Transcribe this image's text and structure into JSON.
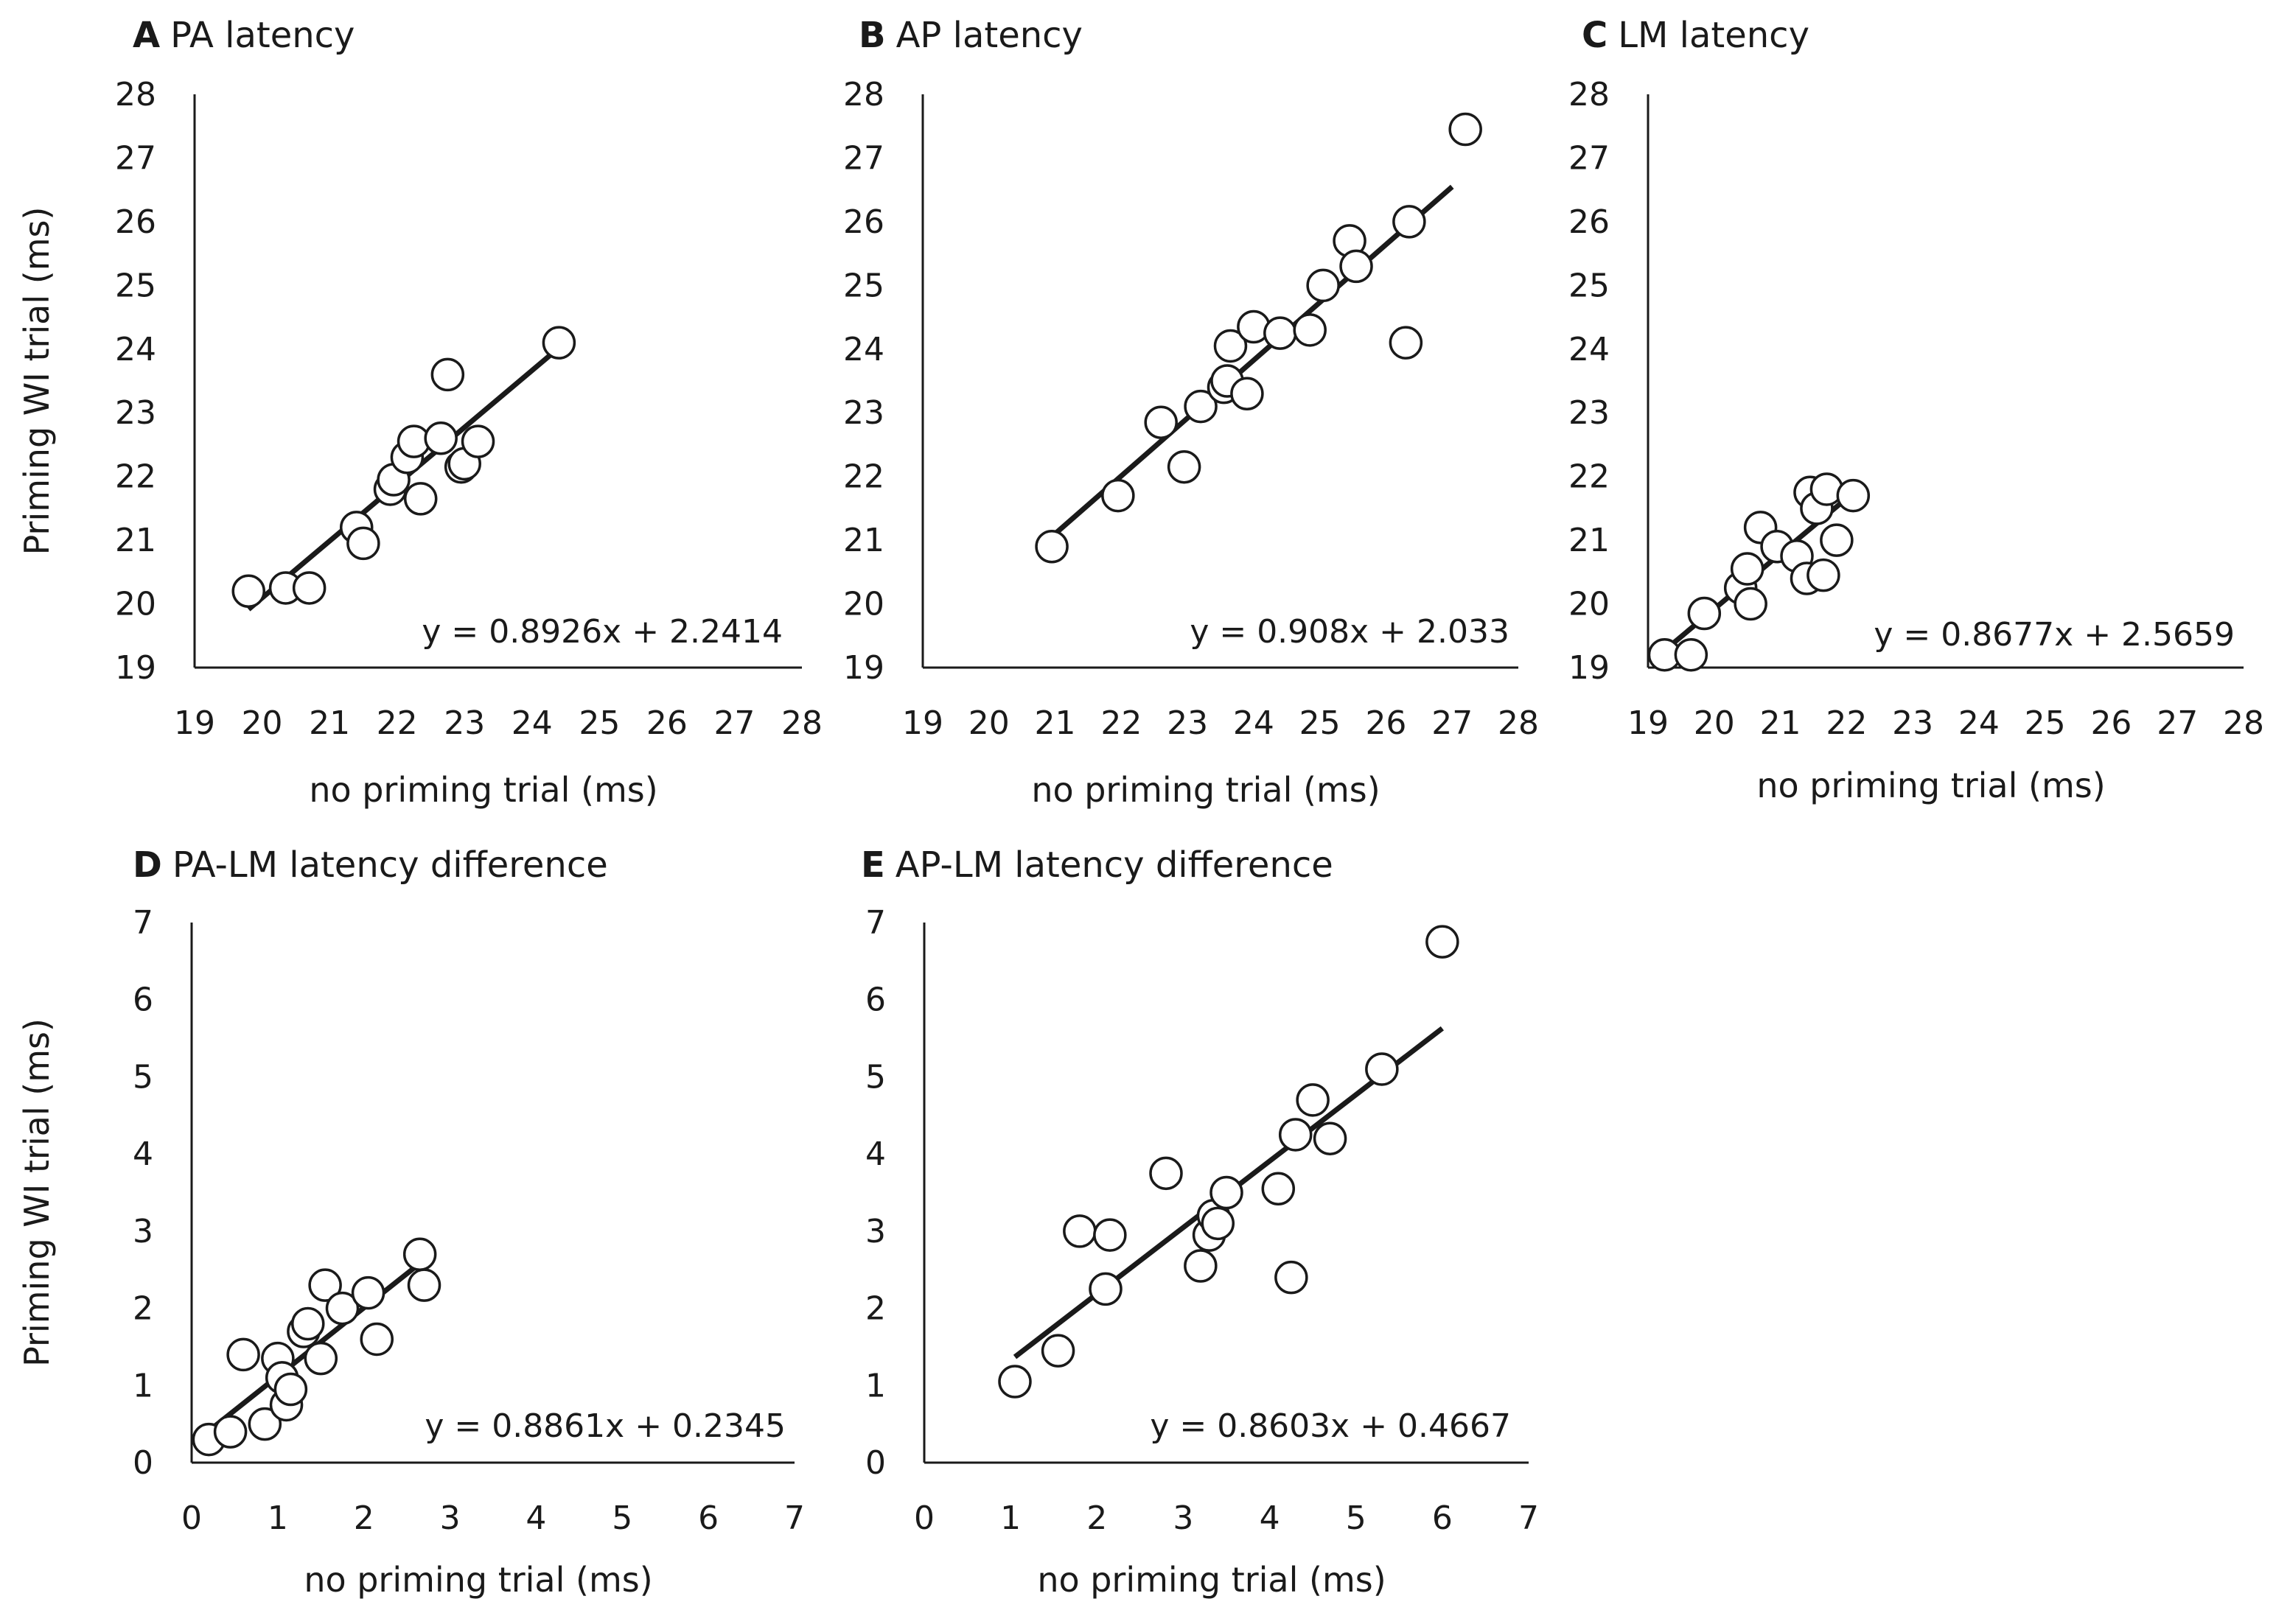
{
  "figure": {
    "shared_ylabel": "Priming WI trial (ms)",
    "shared_xlabel": "no priming trial (ms)"
  },
  "chart_data": [
    {
      "id": "A",
      "type": "scatter",
      "letter": "A",
      "title": "PA latency",
      "xlabel": "no priming trial (ms)",
      "ylabel": "Priming WI trial (ms)",
      "xlim": [
        19,
        28
      ],
      "ylim": [
        19,
        28
      ],
      "xticks": [
        19,
        20,
        21,
        22,
        23,
        24,
        25,
        26,
        27,
        28
      ],
      "yticks": [
        19,
        20,
        21,
        22,
        23,
        24,
        25,
        26,
        27,
        28
      ],
      "x": [
        19.8,
        20.35,
        20.7,
        21.4,
        21.5,
        21.9,
        21.95,
        22.15,
        22.25,
        22.35,
        22.65,
        22.75,
        22.95,
        23.0,
        23.2,
        24.4
      ],
      "y": [
        20.2,
        20.25,
        20.25,
        21.2,
        20.95,
        21.8,
        21.95,
        22.3,
        22.55,
        21.65,
        22.6,
        23.6,
        22.15,
        22.2,
        22.55,
        24.1
      ],
      "trendline": {
        "x": [
          19.8,
          24.4
        ],
        "slope": 0.8926,
        "intercept": 2.2414
      },
      "equation": "y = 0.8926x  + 2.2414"
    },
    {
      "id": "B",
      "type": "scatter",
      "letter": "B",
      "title": "AP latency",
      "xlabel": "no priming trial (ms)",
      "ylabel": "",
      "xlim": [
        19,
        28
      ],
      "ylim": [
        19,
        28
      ],
      "xticks": [
        19,
        20,
        21,
        22,
        23,
        24,
        25,
        26,
        27,
        28
      ],
      "yticks": [
        19,
        20,
        21,
        22,
        23,
        24,
        25,
        26,
        27,
        28
      ],
      "x": [
        20.95,
        21.95,
        22.6,
        22.95,
        23.2,
        23.55,
        23.6,
        23.65,
        23.9,
        24.0,
        24.4,
        24.85,
        25.05,
        25.45,
        25.55,
        26.3,
        26.35,
        27.2
      ],
      "y": [
        20.9,
        21.7,
        22.85,
        22.15,
        23.1,
        23.4,
        23.5,
        24.05,
        23.3,
        24.35,
        24.25,
        24.3,
        25.0,
        25.7,
        25.3,
        24.1,
        26.0,
        27.45
      ],
      "trendline": {
        "x": [
          20.95,
          27.0
        ],
        "slope": 0.908,
        "intercept": 2.033
      },
      "equation": "y = 0.908x  + 2.033"
    },
    {
      "id": "C",
      "type": "scatter",
      "letter": "C",
      "title": "LM latency",
      "xlabel": "no priming trial (ms)",
      "ylabel": "",
      "xlim": [
        19,
        28
      ],
      "ylim": [
        19,
        28
      ],
      "xticks": [
        19,
        20,
        21,
        22,
        23,
        24,
        25,
        26,
        27,
        28
      ],
      "yticks": [
        19,
        20,
        21,
        22,
        23,
        24,
        25,
        26,
        27,
        28
      ],
      "x": [
        19.25,
        19.65,
        19.85,
        20.4,
        20.5,
        20.55,
        20.7,
        20.95,
        21.25,
        21.4,
        21.45,
        21.55,
        21.65,
        21.7,
        21.85,
        22.1
      ],
      "y": [
        19.2,
        19.2,
        19.85,
        20.25,
        20.55,
        20.0,
        21.2,
        20.9,
        20.75,
        20.4,
        21.75,
        21.5,
        20.45,
        21.8,
        21.0,
        21.7
      ],
      "trendline": {
        "x": [
          19.1,
          22.1
        ],
        "slope": 0.8677,
        "intercept": 2.5659
      },
      "equation": "y = 0.8677x  + 2.5659"
    },
    {
      "id": "D",
      "type": "scatter",
      "letter": "D",
      "title": "PA-LM latency difference",
      "xlabel": "no priming trial (ms)",
      "ylabel": "Priming WI trial (ms)",
      "xlim": [
        0,
        7
      ],
      "ylim": [
        0,
        7
      ],
      "xticks": [
        0,
        1,
        2,
        3,
        4,
        5,
        6,
        7
      ],
      "yticks": [
        0,
        1,
        2,
        3,
        4,
        5,
        6,
        7
      ],
      "x": [
        0.2,
        0.45,
        0.6,
        0.85,
        1.0,
        1.05,
        1.1,
        1.15,
        1.3,
        1.35,
        1.5,
        1.55,
        1.75,
        2.05,
        2.15,
        2.65,
        2.7
      ],
      "y": [
        0.3,
        0.4,
        1.4,
        0.5,
        1.35,
        1.1,
        0.75,
        0.95,
        1.7,
        1.8,
        1.35,
        2.3,
        2.0,
        2.2,
        1.6,
        2.7,
        2.3
      ],
      "trendline": {
        "x": [
          0.25,
          2.65
        ],
        "slope": 0.8861,
        "intercept": 0.2345
      },
      "equation": "y = 0.8861x  + 0.2345"
    },
    {
      "id": "E",
      "type": "scatter",
      "letter": "E",
      "title": "AP-LM latency difference",
      "xlabel": "no priming trial (ms)",
      "ylabel": "",
      "xlim": [
        0,
        7
      ],
      "ylim": [
        0,
        7
      ],
      "xticks": [
        0,
        1,
        2,
        3,
        4,
        5,
        6,
        7
      ],
      "yticks": [
        0,
        1,
        2,
        3,
        4,
        5,
        6,
        7
      ],
      "x": [
        1.05,
        1.55,
        1.8,
        2.1,
        2.15,
        2.8,
        3.2,
        3.3,
        3.35,
        3.4,
        3.5,
        4.1,
        4.25,
        4.3,
        4.5,
        4.7,
        5.3,
        6.0
      ],
      "y": [
        1.05,
        1.45,
        3.0,
        2.25,
        2.95,
        3.75,
        2.55,
        2.95,
        3.2,
        3.1,
        3.5,
        3.55,
        2.4,
        4.25,
        4.7,
        4.2,
        5.1,
        6.75
      ],
      "trendline": {
        "x": [
          1.05,
          6.0
        ],
        "slope": 0.8603,
        "intercept": 0.4667
      },
      "equation": "y = 0.8603x  + 0.4667"
    }
  ]
}
